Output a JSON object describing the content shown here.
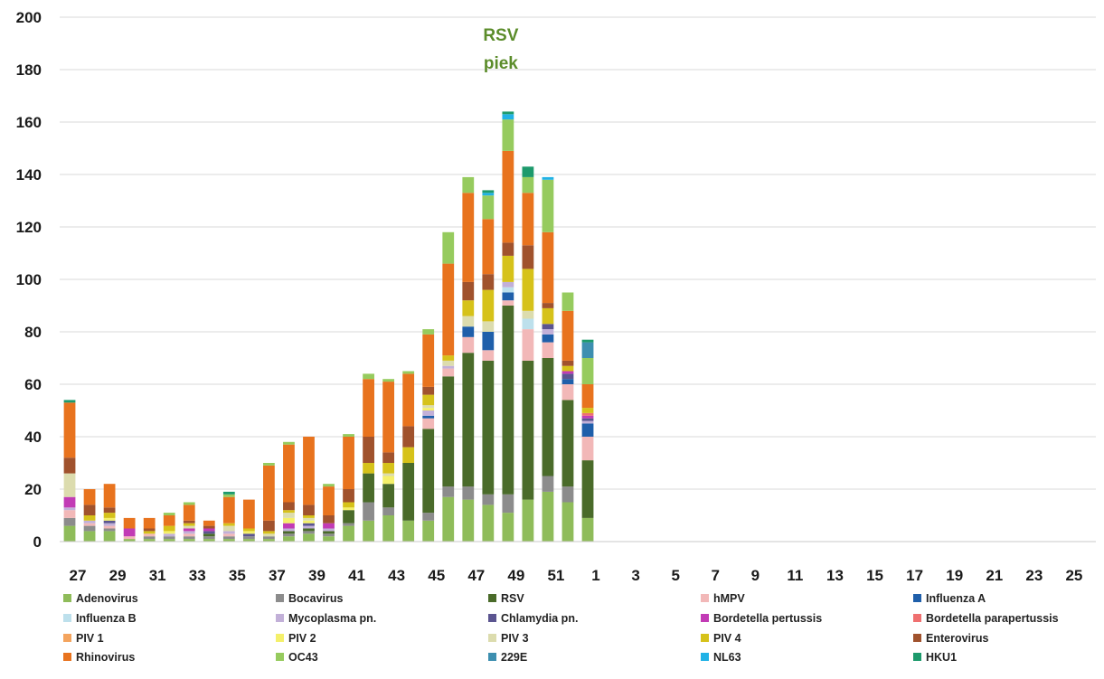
{
  "chart_data": {
    "type": "bar",
    "stacked": true,
    "title": "",
    "xlabel": "",
    "ylabel": "",
    "ylim": [
      0,
      200
    ],
    "yticks": [
      0,
      20,
      40,
      60,
      80,
      100,
      120,
      140,
      160,
      180,
      200
    ],
    "grid": true,
    "legend_position": "bottom",
    "categories": [
      "27",
      "28",
      "29",
      "30",
      "31",
      "32",
      "33",
      "34",
      "35",
      "36",
      "37",
      "38",
      "39",
      "40",
      "41",
      "42",
      "43",
      "44",
      "45",
      "46",
      "47",
      "48",
      "49",
      "50",
      "51",
      "52",
      "1",
      "2",
      "3",
      "4",
      "5",
      "6",
      "7",
      "8",
      "9",
      "10",
      "11",
      "12",
      "13",
      "14",
      "15",
      "16",
      "17",
      "18",
      "19",
      "20",
      "21",
      "22",
      "23",
      "24",
      "25",
      "26"
    ],
    "xtick_labels": [
      "27",
      "29",
      "31",
      "33",
      "35",
      "37",
      "39",
      "41",
      "43",
      "45",
      "47",
      "49",
      "51",
      "1",
      "3",
      "5",
      "7",
      "9",
      "11",
      "13",
      "15",
      "17",
      "19",
      "21",
      "23",
      "25"
    ],
    "annotation": {
      "lines": [
        "RSV",
        "piek"
      ],
      "category": "49"
    },
    "series": [
      {
        "name": "Adenovirus",
        "color": "#8fbc5a",
        "values": [
          6,
          4,
          4,
          1,
          1,
          1,
          1,
          1,
          1,
          1,
          1,
          2,
          3,
          2,
          6,
          8,
          10,
          8,
          8,
          17,
          16,
          14,
          11,
          16,
          19,
          15,
          9,
          0,
          0,
          0,
          0,
          0,
          0,
          0,
          0,
          0,
          0,
          0,
          0,
          0,
          0,
          0,
          0,
          0,
          0,
          0,
          0,
          0,
          0,
          0,
          0,
          0
        ]
      },
      {
        "name": "Bocavirus",
        "color": "#8c8c8c",
        "values": [
          3,
          2,
          1,
          0,
          1,
          1,
          1,
          1,
          1,
          1,
          1,
          1,
          1,
          1,
          1,
          7,
          3,
          0,
          3,
          4,
          5,
          4,
          7,
          0,
          6,
          6,
          0,
          0,
          0,
          0,
          0,
          0,
          0,
          0,
          0,
          0,
          0,
          0,
          0,
          0,
          0,
          0,
          0,
          0,
          0,
          0,
          0,
          0,
          0,
          0,
          0,
          0
        ]
      },
      {
        "name": "RSV",
        "color": "#4a6b2a",
        "values": [
          0,
          0,
          0,
          0,
          0,
          0,
          0,
          1,
          0,
          0,
          0,
          1,
          1,
          1,
          5,
          11,
          9,
          22,
          32,
          42,
          51,
          51,
          72,
          53,
          45,
          33,
          22,
          0,
          0,
          0,
          0,
          0,
          0,
          0,
          0,
          0,
          0,
          0,
          0,
          0,
          0,
          0,
          0,
          0,
          0,
          0,
          0,
          0,
          0,
          0,
          0,
          0
        ]
      },
      {
        "name": "hMPV",
        "color": "#f2b8b8",
        "values": [
          3,
          1,
          1,
          1,
          1,
          0,
          1,
          0,
          1,
          0,
          0,
          0,
          0,
          0,
          0,
          0,
          0,
          0,
          4,
          3,
          6,
          4,
          2,
          12,
          6,
          6,
          9,
          0,
          0,
          0,
          0,
          0,
          0,
          0,
          0,
          0,
          0,
          0,
          0,
          0,
          0,
          0,
          0,
          0,
          0,
          0,
          0,
          0,
          0,
          0,
          0,
          0
        ]
      },
      {
        "name": "Influenza A",
        "color": "#1f5faa",
        "values": [
          0,
          0,
          0,
          0,
          0,
          0,
          0,
          0,
          0,
          0,
          0,
          0,
          0,
          0,
          0,
          0,
          0,
          0,
          1,
          0,
          4,
          7,
          3,
          0,
          3,
          2,
          5,
          0,
          0,
          0,
          0,
          0,
          0,
          0,
          0,
          0,
          0,
          0,
          0,
          0,
          0,
          0,
          0,
          0,
          0,
          0,
          0,
          0,
          0,
          0,
          0,
          0
        ]
      },
      {
        "name": "Influenza B",
        "color": "#bde0ec",
        "values": [
          0,
          0,
          0,
          0,
          0,
          0,
          0,
          0,
          0,
          0,
          0,
          0,
          0,
          0,
          0,
          0,
          0,
          0,
          0,
          0,
          0,
          0,
          2,
          4,
          0,
          0,
          0,
          0,
          0,
          0,
          0,
          0,
          0,
          0,
          0,
          0,
          0,
          0,
          0,
          0,
          0,
          0,
          0,
          0,
          0,
          0,
          0,
          0,
          0,
          0,
          0,
          0
        ]
      },
      {
        "name": "Mycoplasma pn.",
        "color": "#c2b0d8",
        "values": [
          1,
          1,
          1,
          0,
          0,
          1,
          1,
          0,
          1,
          0,
          0,
          1,
          1,
          1,
          0,
          0,
          0,
          0,
          2,
          1,
          0,
          0,
          2,
          0,
          2,
          0,
          1,
          0,
          0,
          0,
          0,
          0,
          0,
          0,
          0,
          0,
          0,
          0,
          0,
          0,
          0,
          0,
          0,
          0,
          0,
          0,
          0,
          0,
          0,
          0,
          0,
          0
        ]
      },
      {
        "name": "Chlamydia pn.",
        "color": "#5b5590",
        "values": [
          0,
          0,
          1,
          0,
          0,
          0,
          0,
          1,
          0,
          1,
          0,
          0,
          1,
          0,
          0,
          0,
          0,
          0,
          0,
          0,
          0,
          0,
          0,
          0,
          2,
          2,
          1,
          0,
          0,
          0,
          0,
          0,
          0,
          0,
          0,
          0,
          0,
          0,
          0,
          0,
          0,
          0,
          0,
          0,
          0,
          0,
          0,
          0,
          0,
          0,
          0,
          0
        ]
      },
      {
        "name": "Bordetella pertussis",
        "color": "#c23bb5",
        "values": [
          4,
          0,
          0,
          3,
          0,
          0,
          1,
          1,
          0,
          0,
          0,
          2,
          0,
          2,
          0,
          0,
          0,
          0,
          0,
          0,
          0,
          0,
          0,
          0,
          0,
          1,
          1,
          0,
          0,
          0,
          0,
          0,
          0,
          0,
          0,
          0,
          0,
          0,
          0,
          0,
          0,
          0,
          0,
          0,
          0,
          0,
          0,
          0,
          0,
          0,
          0,
          0
        ]
      },
      {
        "name": "Bordetella parapertussis",
        "color": "#ef7070",
        "values": [
          0,
          0,
          0,
          0,
          0,
          0,
          0,
          0,
          0,
          0,
          0,
          0,
          0,
          0,
          0,
          0,
          0,
          0,
          0,
          0,
          0,
          0,
          0,
          0,
          0,
          0,
          1,
          0,
          0,
          0,
          0,
          0,
          0,
          0,
          0,
          0,
          0,
          0,
          0,
          0,
          0,
          0,
          0,
          0,
          0,
          0,
          0,
          0,
          0,
          0,
          0,
          0
        ]
      },
      {
        "name": "PIV 1",
        "color": "#f4a45e",
        "values": [
          0,
          0,
          0,
          0,
          0,
          0,
          0,
          0,
          0,
          0,
          0,
          0,
          0,
          0,
          0,
          0,
          0,
          0,
          0,
          0,
          0,
          0,
          0,
          0,
          0,
          0,
          0,
          0,
          0,
          0,
          0,
          0,
          0,
          0,
          0,
          0,
          0,
          0,
          0,
          0,
          0,
          0,
          0,
          0,
          0,
          0,
          0,
          0,
          0,
          0,
          0,
          0
        ]
      },
      {
        "name": "PIV 2",
        "color": "#f4f06a",
        "values": [
          0,
          0,
          1,
          0,
          0,
          1,
          0,
          0,
          0,
          1,
          0,
          2,
          1,
          0,
          1,
          0,
          3,
          0,
          1,
          0,
          0,
          0,
          0,
          0,
          0,
          0,
          0,
          0,
          0,
          0,
          0,
          0,
          0,
          0,
          0,
          0,
          0,
          0,
          0,
          0,
          0,
          0,
          0,
          0,
          0,
          0,
          0,
          0,
          0,
          0,
          0,
          0
        ]
      },
      {
        "name": "PIV 3",
        "color": "#dcdcae",
        "values": [
          9,
          0,
          0,
          0,
          0,
          0,
          1,
          0,
          2,
          0,
          1,
          2,
          1,
          0,
          0,
          0,
          1,
          0,
          1,
          2,
          4,
          4,
          0,
          3,
          0,
          0,
          0,
          0,
          0,
          0,
          0,
          0,
          0,
          0,
          0,
          0,
          0,
          0,
          0,
          0,
          0,
          0,
          0,
          0,
          0,
          0,
          0,
          0,
          0,
          0,
          0,
          0
        ]
      },
      {
        "name": "PIV 4",
        "color": "#d6c21a",
        "values": [
          0,
          2,
          2,
          0,
          1,
          2,
          1,
          0,
          1,
          1,
          1,
          1,
          1,
          0,
          2,
          4,
          4,
          6,
          4,
          2,
          6,
          12,
          10,
          16,
          6,
          2,
          2,
          0,
          0,
          0,
          0,
          0,
          0,
          0,
          0,
          0,
          0,
          0,
          0,
          0,
          0,
          0,
          0,
          0,
          0,
          0,
          0,
          0,
          0,
          0,
          0,
          0
        ]
      },
      {
        "name": "Enterovirus",
        "color": "#a0522d",
        "values": [
          6,
          4,
          2,
          0,
          1,
          0,
          1,
          1,
          0,
          0,
          4,
          3,
          4,
          3,
          5,
          10,
          4,
          8,
          3,
          0,
          7,
          6,
          5,
          9,
          2,
          2,
          0,
          0,
          0,
          0,
          0,
          0,
          0,
          0,
          0,
          0,
          0,
          0,
          0,
          0,
          0,
          0,
          0,
          0,
          0,
          0,
          0,
          0,
          0,
          0,
          0,
          0
        ]
      },
      {
        "name": "Rhinovirus",
        "color": "#e8731e",
        "values": [
          21,
          6,
          9,
          4,
          4,
          4,
          6,
          2,
          10,
          11,
          21,
          22,
          26,
          11,
          20,
          22,
          27,
          20,
          20,
          35,
          34,
          21,
          35,
          20,
          27,
          19,
          9,
          0,
          0,
          0,
          0,
          0,
          0,
          0,
          0,
          0,
          0,
          0,
          0,
          0,
          0,
          0,
          0,
          0,
          0,
          0,
          0,
          0,
          0,
          0,
          0,
          0
        ]
      },
      {
        "name": "OC43",
        "color": "#96cb5e",
        "values": [
          0,
          0,
          0,
          0,
          0,
          1,
          1,
          0,
          1,
          0,
          1,
          1,
          0,
          1,
          1,
          2,
          1,
          1,
          2,
          12,
          6,
          9,
          12,
          6,
          20,
          7,
          10,
          0,
          0,
          0,
          0,
          0,
          0,
          0,
          0,
          0,
          0,
          0,
          0,
          0,
          0,
          0,
          0,
          0,
          0,
          0,
          0,
          0,
          0,
          0,
          0,
          0
        ]
      },
      {
        "name": "229E",
        "color": "#3d8fb0",
        "values": [
          0,
          0,
          0,
          0,
          0,
          0,
          0,
          0,
          0,
          0,
          0,
          0,
          0,
          0,
          0,
          0,
          0,
          0,
          0,
          0,
          0,
          0,
          0,
          0,
          0,
          0,
          6,
          0,
          0,
          0,
          0,
          0,
          0,
          0,
          0,
          0,
          0,
          0,
          0,
          0,
          0,
          0,
          0,
          0,
          0,
          0,
          0,
          0,
          0,
          0,
          0,
          0
        ]
      },
      {
        "name": "NL63",
        "color": "#21b2e6",
        "values": [
          0,
          0,
          0,
          0,
          0,
          0,
          0,
          0,
          0,
          0,
          0,
          0,
          0,
          0,
          0,
          0,
          0,
          0,
          0,
          0,
          0,
          1,
          2,
          0,
          1,
          0,
          0,
          0,
          0,
          0,
          0,
          0,
          0,
          0,
          0,
          0,
          0,
          0,
          0,
          0,
          0,
          0,
          0,
          0,
          0,
          0,
          0,
          0,
          0,
          0,
          0,
          0
        ]
      },
      {
        "name": "HKU1",
        "color": "#1d9a6c",
        "values": [
          1,
          0,
          0,
          0,
          0,
          0,
          0,
          0,
          1,
          0,
          0,
          0,
          0,
          0,
          0,
          0,
          0,
          0,
          0,
          0,
          0,
          1,
          1,
          4,
          0,
          0,
          1,
          0,
          0,
          0,
          0,
          0,
          0,
          0,
          0,
          0,
          0,
          0,
          0,
          0,
          0,
          0,
          0,
          0,
          0,
          0,
          0,
          0,
          0,
          0,
          0,
          0
        ]
      }
    ]
  }
}
